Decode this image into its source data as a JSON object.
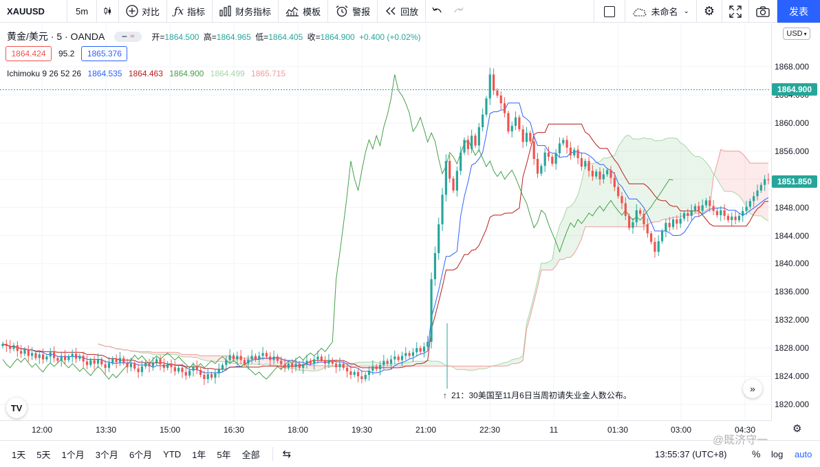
{
  "toolbar": {
    "symbol": "XAUUSD",
    "interval": "5m",
    "compare": "对比",
    "indicators": "指标",
    "financials": "财务指标",
    "templates": "模板",
    "alert": "警报",
    "replay": "回放",
    "layout_name": "未命名",
    "publish": "发表"
  },
  "legend": {
    "symbol": "黄金/美元 · 5 · OANDA",
    "open_label": "开=",
    "open": "1864.500",
    "high_label": "高=",
    "high": "1864.965",
    "low_label": "低=",
    "low": "1864.405",
    "close_label": "收=",
    "close": "1864.900",
    "change": "+0.400 (+0.02%)",
    "sell_price": "1864.424",
    "spread": "95.2",
    "buy_price": "1865.376",
    "ichimoku_label": "Ichimoku 9 26 52 26",
    "ichimoku_values": [
      "1864.535",
      "1864.463",
      "1864.900",
      "1864.499",
      "1865.715"
    ],
    "ichimoku_colors": [
      "#2962ff",
      "#b71c1c",
      "#43a047",
      "#a5d6a7",
      "#ef9a9a"
    ]
  },
  "price_axis": {
    "currency": "USD",
    "labels": [
      "1868.000",
      "1864.000",
      "1860.000",
      "1856.000",
      "1852.000",
      "1848.000",
      "1844.000",
      "1840.000",
      "1836.000",
      "1832.000",
      "1828.000",
      "1824.000",
      "1820.000"
    ],
    "last_price": "1864.900",
    "last_price_color": "#26a69a",
    "current_price": "1851.850",
    "current_price_color": "#26a69a"
  },
  "time_axis": [
    "12:00",
    "13:30",
    "15:00",
    "16:30",
    "18:00",
    "19:30",
    "21:00",
    "22:30",
    "11",
    "01:30",
    "03:00",
    "04:30"
  ],
  "event_note": "21：30美国至11月6日当周初请失业金人数公布。",
  "bottom": {
    "ranges": [
      "1天",
      "5天",
      "1个月",
      "3个月",
      "6个月",
      "YTD",
      "1年",
      "5年",
      "全部"
    ],
    "clock": "13:55:37 (UTC+8)",
    "pct": "%",
    "log": "log",
    "auto": "auto"
  },
  "watermark": "@既济守一",
  "chart_data": {
    "type": "candlestick",
    "symbol": "XAUUSD",
    "interval": "5m",
    "ylim": [
      1819,
      1872
    ],
    "indicator": "Ichimoku 9 26 52 26",
    "colors": {
      "up": "#26a69a",
      "down": "#ef5350"
    },
    "candles": [
      1828.6,
      1828.3,
      1827.9,
      1828.4,
      1827.6,
      1827.2,
      1827.8,
      1826.9,
      1827.3,
      1826.6,
      1827.1,
      1826.4,
      1826.8,
      1827.4,
      1826.6,
      1826.2,
      1826.9,
      1826.3,
      1826.8,
      1827.2,
      1826.5,
      1826.9,
      1826.1,
      1825.6,
      1826.3,
      1825.8,
      1826.4,
      1825.7,
      1825.2,
      1825.9,
      1826.5,
      1826.0,
      1826.6,
      1825.9,
      1825.3,
      1825.8,
      1825.1,
      1824.6,
      1825.4,
      1825.9,
      1825.4,
      1825.9,
      1826.4,
      1825.7,
      1825.2,
      1825.8,
      1825.3,
      1824.7,
      1825.2,
      1824.6,
      1824.1,
      1824.8,
      1825.4,
      1824.9,
      1824.2,
      1823.6,
      1824.3,
      1823.8,
      1824.4,
      1825.0,
      1825.6,
      1826.3,
      1827.0,
      1826.4,
      1826.9,
      1826.3,
      1825.8,
      1826.4,
      1826.9,
      1826.4,
      1826.9,
      1827.3,
      1826.8,
      1826.3,
      1826.8,
      1826.2,
      1825.7,
      1825.2,
      1825.8,
      1825.3,
      1825.8,
      1825.2,
      1825.7,
      1826.2,
      1825.8,
      1826.4,
      1826.8,
      1826.3,
      1825.8,
      1826.3,
      1825.8,
      1825.3,
      1825.8,
      1825.2,
      1824.7,
      1824.2,
      1824.6,
      1824.0,
      1823.6,
      1824.2,
      1824.8,
      1825.4,
      1825.0,
      1825.6,
      1826.2,
      1825.8,
      1826.4,
      1826.8,
      1826.3,
      1826.9,
      1827.3,
      1826.9,
      1827.4,
      1828.0,
      1827.5,
      1828.2,
      1828.9,
      1837.8,
      1841.5,
      1845.6,
      1849.8,
      1854.6,
      1852.1,
      1850.4,
      1853.2,
      1855.8,
      1857.6,
      1856.3,
      1858.2,
      1856.8,
      1859.4,
      1861.2,
      1863.5,
      1866.9,
      1864.6,
      1863.9,
      1862.8,
      1861.4,
      1858.8,
      1859.6,
      1860.8,
      1859.1,
      1857.3,
      1858.6,
      1857.4,
      1854.9,
      1852.8,
      1853.9,
      1855.8,
      1855.2,
      1854.2,
      1855.7,
      1857.1,
      1857.6,
      1856.5,
      1855.4,
      1856.2,
      1855.0,
      1853.8,
      1854.6,
      1853.2,
      1852.4,
      1853.1,
      1852.0,
      1852.7,
      1853.3,
      1852.2,
      1850.9,
      1849.6,
      1848.6,
      1846.8,
      1845.1,
      1845.9,
      1847.6,
      1847.1,
      1845.6,
      1844.3,
      1843.1,
      1841.7,
      1843.2,
      1844.6,
      1845.8,
      1845.2,
      1846.3,
      1845.7,
      1846.4,
      1847.2,
      1846.8,
      1847.6,
      1848.2,
      1847.5,
      1848.3,
      1849.0,
      1848.2,
      1847.5,
      1846.9,
      1847.6,
      1846.8,
      1846.2,
      1846.7,
      1846.2,
      1846.8,
      1847.5,
      1848.1,
      1848.9,
      1849.6,
      1850.4,
      1851.2,
      1852.0,
      1851.9
    ]
  }
}
